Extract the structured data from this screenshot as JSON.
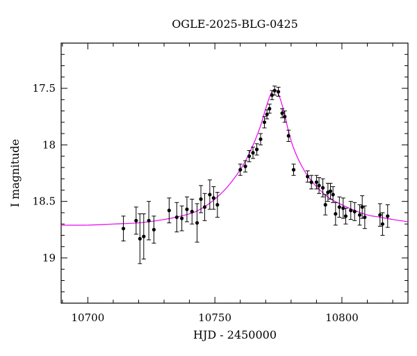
{
  "chart_data": {
    "type": "scatter",
    "title": "OGLE-2025-BLG-0425",
    "xlabel": "HJD - 2450000",
    "ylabel": "I magnitude",
    "xlim": [
      10689.5,
      10826
    ],
    "ylim": [
      19.4,
      17.1
    ],
    "y_inverted": true,
    "x_ticks": [
      10700,
      10750,
      10800
    ],
    "y_ticks": [
      17.5,
      18,
      18.5,
      19
    ],
    "x_tick_labels": [
      "10700",
      "10750",
      "10800"
    ],
    "y_tick_labels": [
      "17.5",
      "18",
      "18.5",
      "19"
    ],
    "x_minor_step": 10,
    "y_minor_step": 0.1,
    "grid": false,
    "colors": {
      "points": "#000000",
      "model": "#ee00ee",
      "axes": "#000000"
    },
    "series": [
      {
        "name": "observations",
        "style": "points_with_errorbars",
        "x": [
          10714,
          10719,
          10720.5,
          10722,
          10724,
          10726,
          10732,
          10735,
          10737,
          10739,
          10741,
          10743,
          10744.5,
          10746,
          10748,
          10749.5,
          10751,
          10760,
          10762,
          10763.5,
          10765,
          10766.5,
          10768,
          10769.5,
          10770.5,
          10771.5,
          10772.5,
          10773.5,
          10775,
          10776.5,
          10777.5,
          10779,
          10781,
          10786.5,
          10788,
          10790,
          10791,
          10792.5,
          10793.5,
          10794.5,
          10795.5,
          10796.5,
          10797.5,
          10799,
          10800.5,
          10801.5,
          10803.5,
          10805,
          10807,
          10808,
          10809,
          10815,
          10816,
          10818
        ],
        "y": [
          18.74,
          18.67,
          18.83,
          18.81,
          18.67,
          18.75,
          18.58,
          18.64,
          18.65,
          18.57,
          18.59,
          18.69,
          18.48,
          18.55,
          18.44,
          18.47,
          18.53,
          18.22,
          18.19,
          18.1,
          18.07,
          18.04,
          17.95,
          17.8,
          17.73,
          17.68,
          17.56,
          17.52,
          17.53,
          17.72,
          17.75,
          17.92,
          18.22,
          18.28,
          18.33,
          18.33,
          18.36,
          18.38,
          18.53,
          18.42,
          18.41,
          18.44,
          18.61,
          18.55,
          18.56,
          18.63,
          18.58,
          18.59,
          18.62,
          18.55,
          18.64,
          18.62,
          18.7,
          18.63
        ],
        "yerr": [
          0.11,
          0.12,
          0.22,
          0.2,
          0.17,
          0.12,
          0.11,
          0.13,
          0.11,
          0.11,
          0.11,
          0.17,
          0.12,
          0.12,
          0.13,
          0.1,
          0.11,
          0.05,
          0.05,
          0.05,
          0.05,
          0.05,
          0.05,
          0.05,
          0.04,
          0.04,
          0.04,
          0.04,
          0.04,
          0.04,
          0.05,
          0.05,
          0.05,
          0.05,
          0.06,
          0.06,
          0.07,
          0.08,
          0.09,
          0.08,
          0.07,
          0.07,
          0.1,
          0.09,
          0.09,
          0.07,
          0.08,
          0.08,
          0.09,
          0.1,
          0.1,
          0.1,
          0.1,
          0.1
        ]
      },
      {
        "name": "model",
        "style": "line",
        "x": [
          10689.5,
          10700,
          10710,
          10720,
          10730,
          10740,
          10745,
          10750,
          10755,
          10760,
          10763,
          10766,
          10768,
          10770,
          10772,
          10773.5,
          10775,
          10777,
          10779,
          10781,
          10784,
          10787,
          10790,
          10795,
          10800,
          10805,
          10810,
          10815,
          10820,
          10826
        ],
        "y": [
          18.71,
          18.71,
          18.7,
          18.69,
          18.66,
          18.61,
          18.56,
          18.48,
          18.37,
          18.22,
          18.1,
          17.95,
          17.83,
          17.68,
          17.55,
          17.51,
          17.55,
          17.69,
          17.88,
          18.03,
          18.18,
          18.29,
          18.37,
          18.47,
          18.53,
          18.58,
          18.62,
          18.64,
          18.66,
          18.68
        ]
      }
    ]
  }
}
